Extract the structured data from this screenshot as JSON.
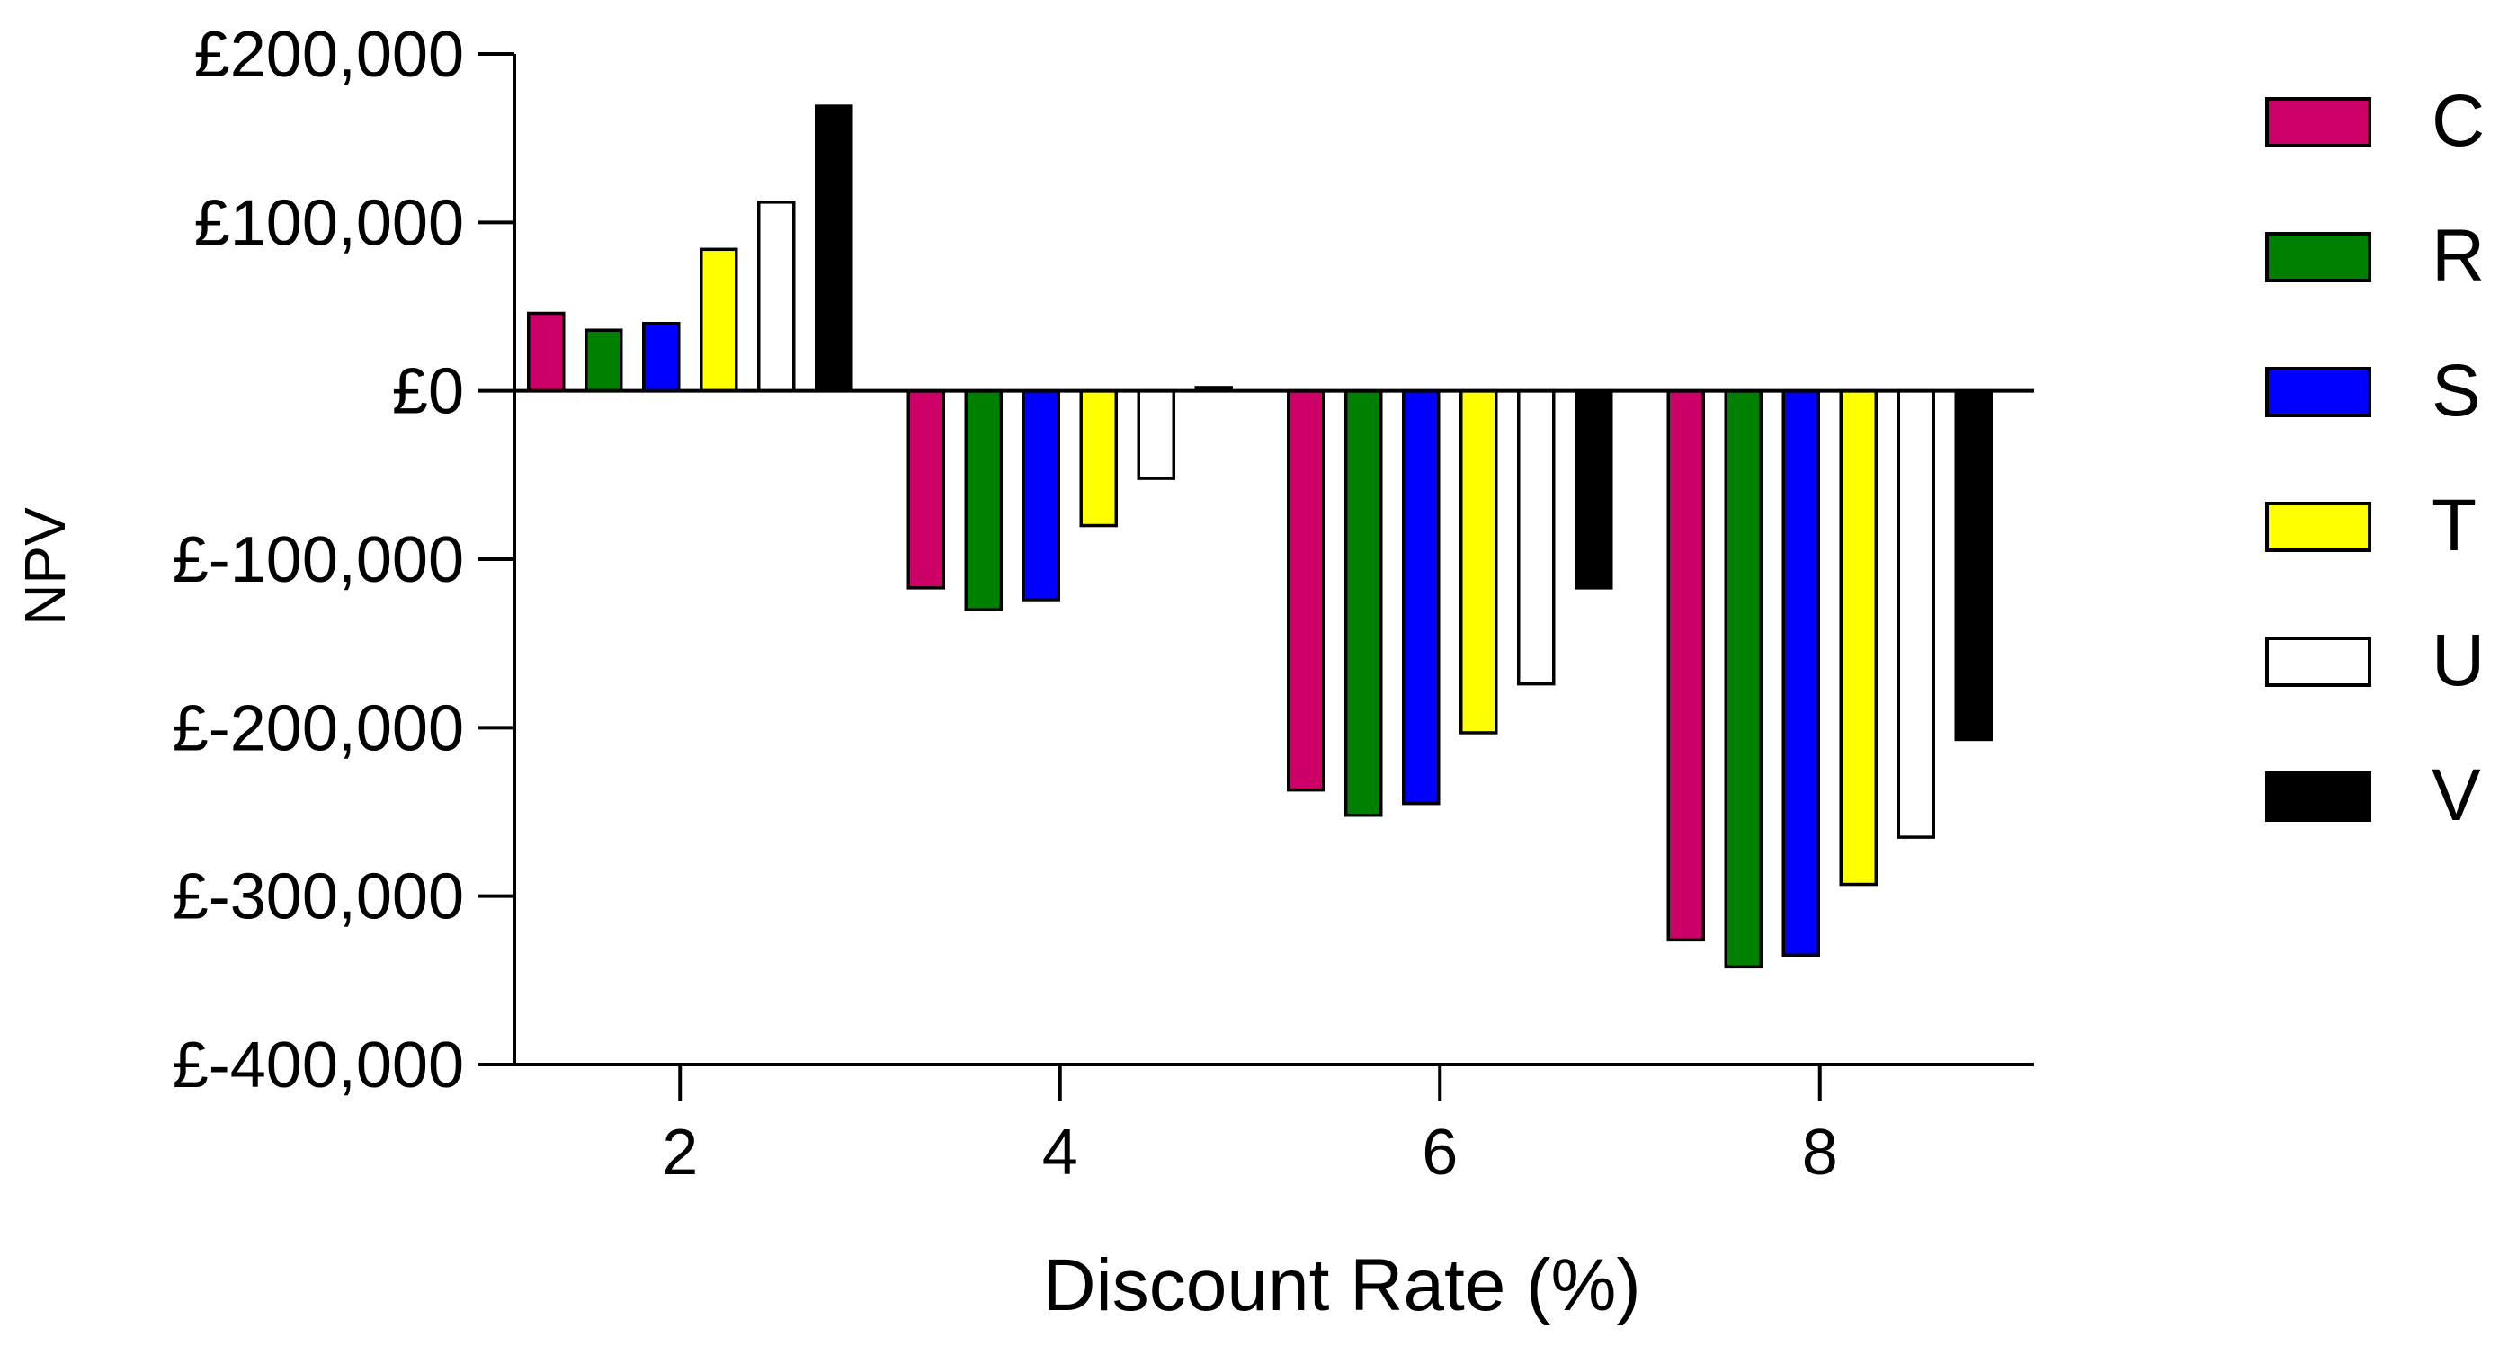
{
  "chart_data": {
    "type": "bar",
    "title": "",
    "xlabel": "Discount Rate (%)",
    "ylabel": "NPV",
    "categories": [
      "2",
      "4",
      "6",
      "8"
    ],
    "x_ticks": [
      "2",
      "4",
      "6",
      "8"
    ],
    "y_ticks": [
      {
        "value": 200000,
        "label": "£200,000"
      },
      {
        "value": 100000,
        "label": "£100,000"
      },
      {
        "value": 0,
        "label": "£0"
      },
      {
        "value": -100000,
        "label": "£-100,000"
      },
      {
        "value": -200000,
        "label": "£-200,000"
      },
      {
        "value": -300000,
        "label": "£-300,000"
      },
      {
        "value": -400000,
        "label": "£-400,000"
      }
    ],
    "ylim": [
      -400000,
      200000
    ],
    "grid": false,
    "legend_position": "right",
    "series": [
      {
        "name": "C",
        "color": "#cc0066",
        "values": [
          46000,
          -117000,
          -237000,
          -326000
        ]
      },
      {
        "name": "R",
        "color": "#008000",
        "values": [
          36000,
          -130000,
          -252000,
          -342000
        ]
      },
      {
        "name": "S",
        "color": "#0000ff",
        "values": [
          40000,
          -124000,
          -245000,
          -335000
        ]
      },
      {
        "name": "T",
        "color": "#ffff00",
        "values": [
          84000,
          -80000,
          -203000,
          -293000
        ]
      },
      {
        "name": "U",
        "color": "#ffffff",
        "values": [
          112000,
          -52000,
          -174000,
          -265000
        ]
      },
      {
        "name": "V",
        "color": "#000000",
        "values": [
          169000,
          2000,
          -117000,
          -207000
        ]
      }
    ]
  }
}
